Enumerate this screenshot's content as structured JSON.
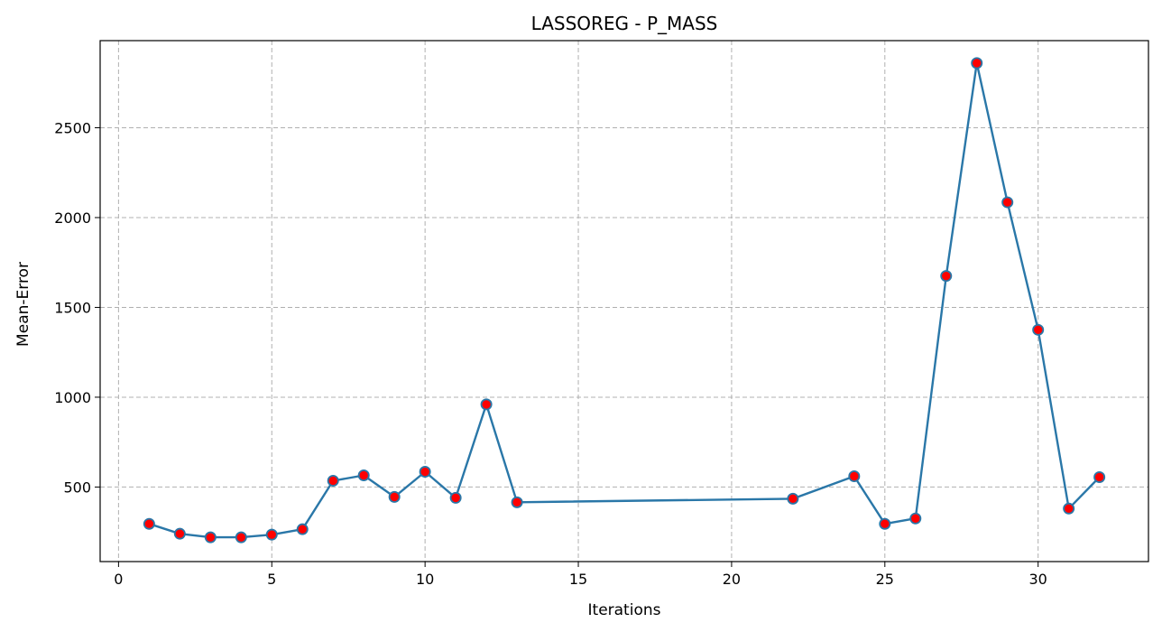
{
  "chart_data": {
    "type": "line",
    "title": "LASSOREG - P_MASS",
    "xlabel": "Iterations",
    "ylabel": "Mean-Error",
    "xlim": [
      -0.6,
      33.6
    ],
    "ylim": [
      85,
      2985
    ],
    "xticks": [
      0,
      5,
      10,
      15,
      20,
      25,
      30
    ],
    "yticks": [
      500,
      1000,
      1500,
      2000,
      2500
    ],
    "grid": true,
    "grid_style": "dashed",
    "colors": {
      "line": "#2a77a8",
      "marker_fill": "#ff0000",
      "marker_edge": "#2a77a8",
      "grid": "#b0b0b0"
    },
    "series": [
      {
        "x": [
          1,
          2,
          3,
          4,
          5,
          6,
          7,
          8,
          9,
          10,
          11,
          12,
          13,
          22,
          24,
          25,
          26,
          27,
          28,
          29,
          30,
          31,
          32
        ],
        "values": [
          295,
          240,
          220,
          220,
          235,
          265,
          535,
          565,
          445,
          585,
          440,
          960,
          415,
          435,
          560,
          295,
          325,
          1675,
          2860,
          2085,
          1375,
          380,
          555
        ]
      }
    ]
  }
}
